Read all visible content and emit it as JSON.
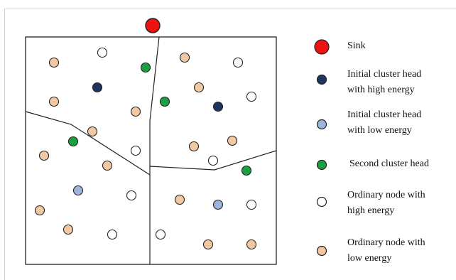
{
  "colors": {
    "sink": "#ee1111",
    "initial_high": "#1f3560",
    "initial_low": "#9db5dc",
    "second_head": "#1aa040",
    "ordinary_high": "#ffffff",
    "ordinary_low": "#f2c8a2",
    "stroke": "#222222"
  },
  "legend": [
    {
      "type": "sink",
      "label": "Sink"
    },
    {
      "type": "initial_high",
      "label": "Initial cluster head\nwith high energy"
    },
    {
      "type": "initial_low",
      "label": "Initial cluster head\nwith low energy"
    },
    {
      "type": "second_head",
      "label": "Second cluster head"
    },
    {
      "type": "ordinary_high",
      "label": "Ordinary node with\nhigh energy"
    },
    {
      "type": "ordinary_low",
      "label": "Ordinary node with\nlow energy"
    }
  ]
}
